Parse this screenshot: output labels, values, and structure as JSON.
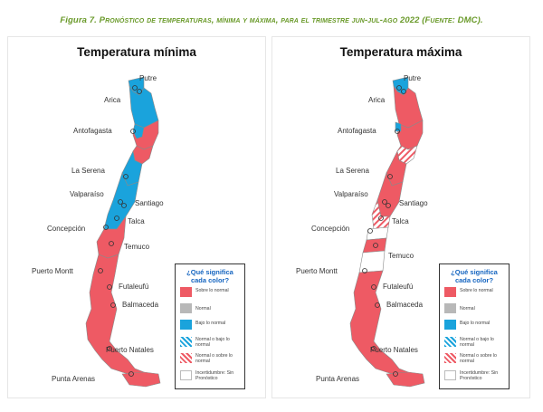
{
  "caption": {
    "prefix": "Figura 7.",
    "text": " Pronóstico de temperaturas, mínima y máxima, para el trimestre jun-jul-ago 2022 (Fuente: DMC)."
  },
  "colors": {
    "above": "#ee5a64",
    "normal": "#b8b8b8",
    "below": "#1aa3dc",
    "outline": "#8a8a8a"
  },
  "panels": [
    {
      "title": "Temperatura mínima",
      "cities": [
        "Putre",
        "Arica",
        "Antofagasta",
        "La Serena",
        "Valparaíso",
        "Santiago",
        "Talca",
        "Concepción",
        "Temuco",
        "Puerto Montt",
        "Futaleufú",
        "Balmaceda",
        "Puerto Natales",
        "Punta Arenas"
      ]
    },
    {
      "title": "Temperatura máxima",
      "cities": [
        "Putre",
        "Arica",
        "Antofagasta",
        "La Serena",
        "Valparaíso",
        "Santiago",
        "Talca",
        "Concepción",
        "Temuco",
        "Puerto Montt",
        "Futaleufú",
        "Balmaceda",
        "Puerto Natales",
        "Punta Arenas"
      ]
    }
  ],
  "legend": {
    "title": "¿Qué significa cada color?",
    "items": [
      {
        "label": "Sobre lo normal",
        "key": "above"
      },
      {
        "label": "Normal",
        "key": "normal"
      },
      {
        "label": "Bajo lo normal",
        "key": "below"
      },
      {
        "label": "Normal o bajo lo normal",
        "key": "normal-below"
      },
      {
        "label": "Normal o sobre lo normal",
        "key": "normal-above"
      },
      {
        "label": "Incertidumbre: Sin Pronóstico",
        "key": "uncertain"
      }
    ]
  }
}
